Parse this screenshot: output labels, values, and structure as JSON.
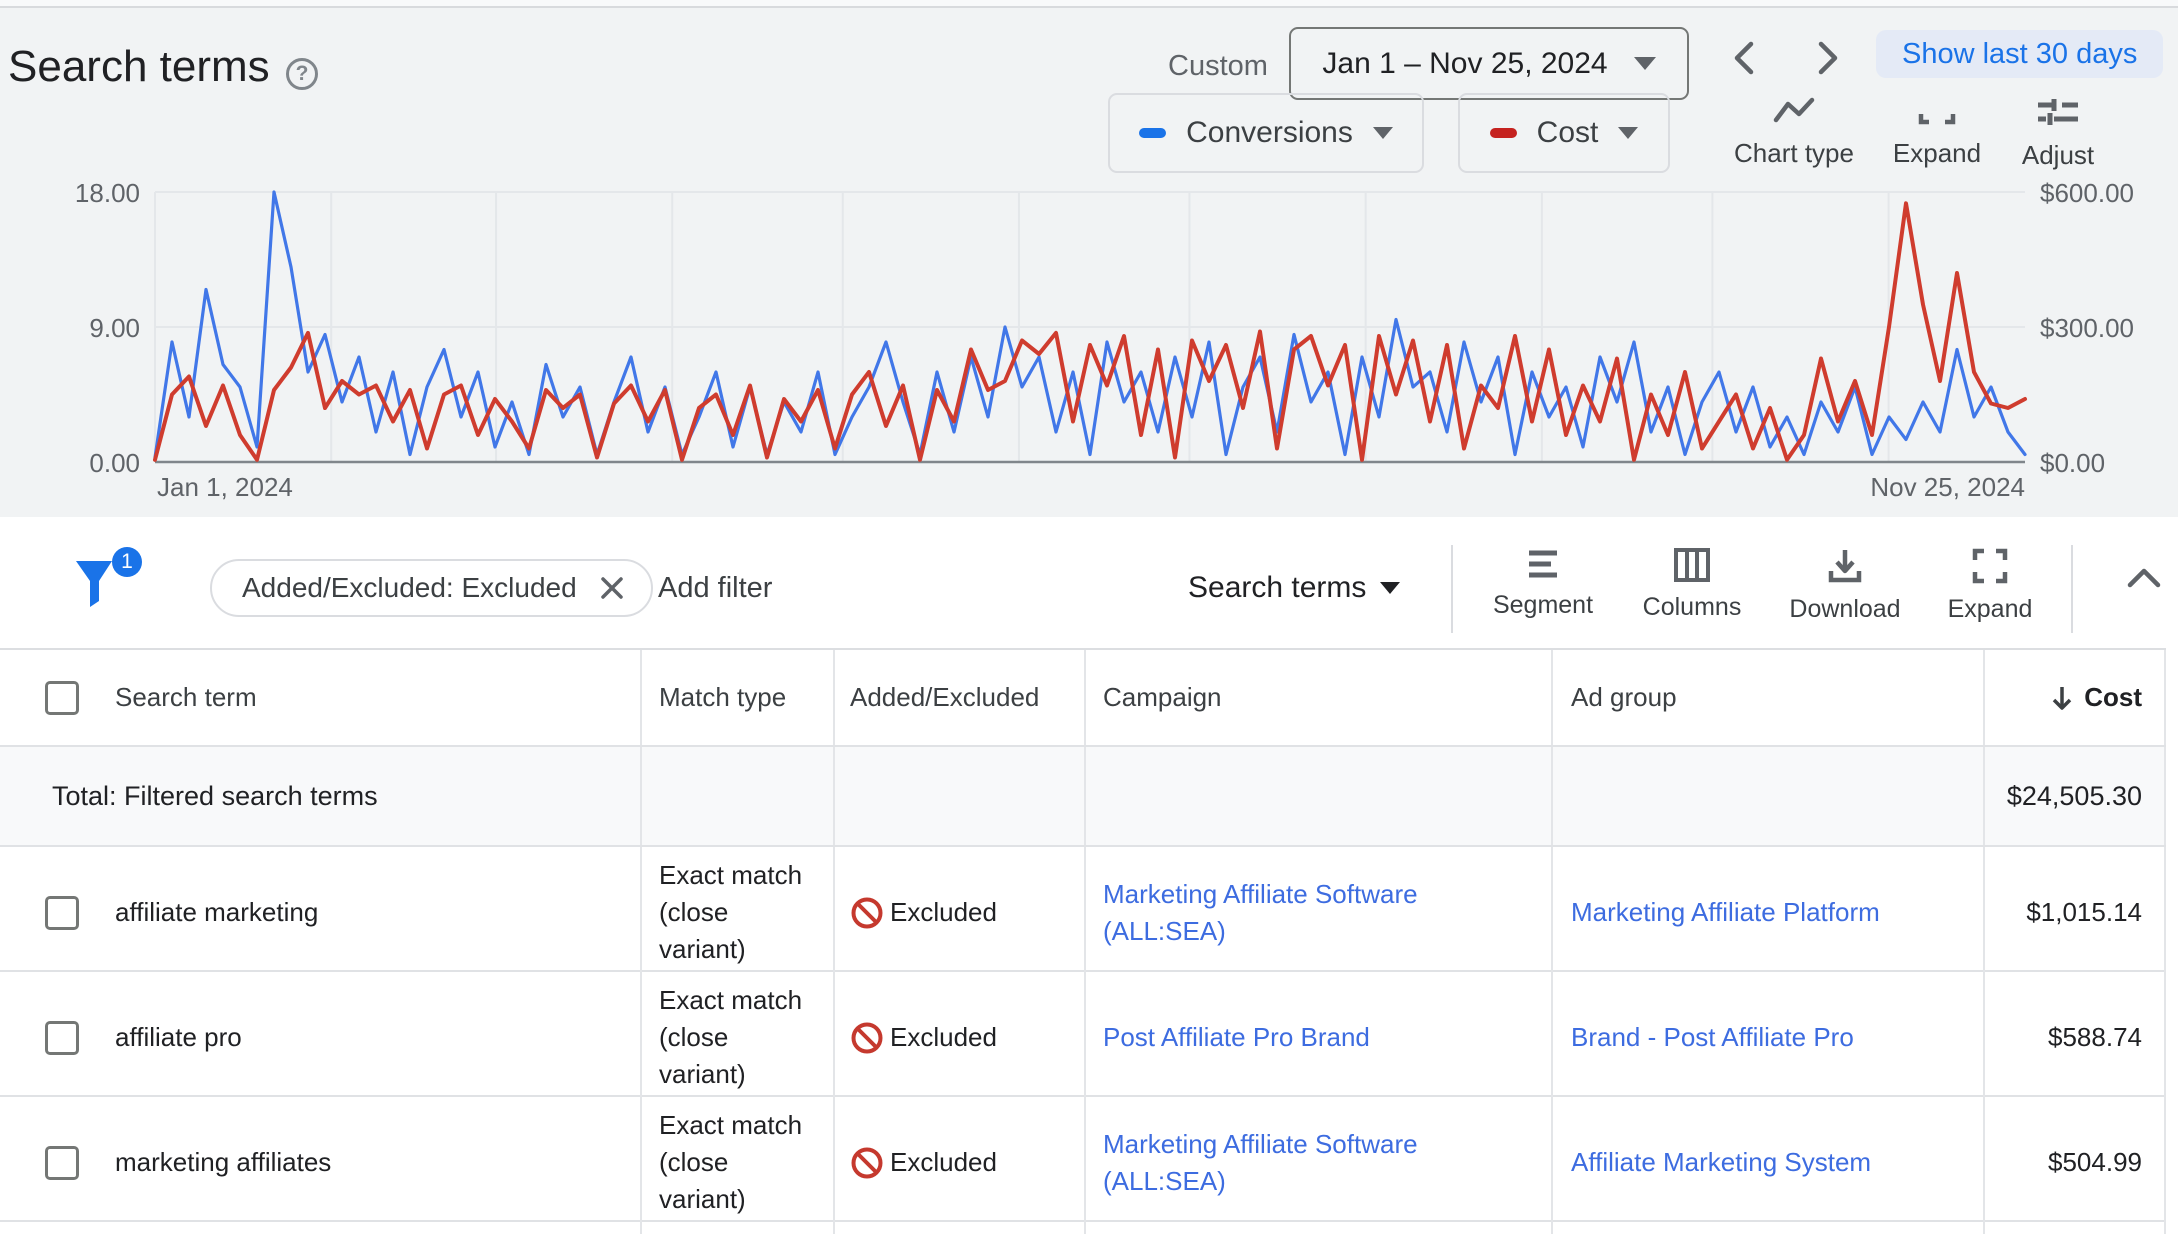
{
  "header": {
    "title": "Search terms",
    "help_icon": "?",
    "custom_label": "Custom",
    "date_range": "Jan 1 – Nov 25, 2024",
    "show_last_button": "Show last 30 days"
  },
  "chart_controls": {
    "metric1": {
      "label": "Conversions",
      "color": "#1a73e8"
    },
    "metric2": {
      "label": "Cost",
      "color": "#c5221f"
    },
    "chart_type_label": "Chart type",
    "expand_label": "Expand",
    "adjust_label": "Adjust"
  },
  "chart_data": {
    "type": "line",
    "title": "",
    "xlabel": "",
    "ylabel_left": "Conversions",
    "ylabel_right": "Cost",
    "x_start_label": "Jan 1, 2024",
    "x_end_label": "Nov 25, 2024",
    "left_axis": {
      "ticks": [
        "18.00",
        "9.00",
        "0.00"
      ],
      "max": 18
    },
    "right_axis": {
      "ticks": [
        "$600.00",
        "$300.00",
        "$0.00"
      ],
      "max": 600
    },
    "grid_month_days": [
      0,
      31,
      60,
      91,
      121,
      152,
      182,
      213,
      244,
      274,
      305
    ],
    "total_days": 329,
    "legend_position": "top-right",
    "series": [
      {
        "name": "Conversions",
        "axis": "left",
        "color": "#4177e8",
        "values": [
          0.3,
          8,
          3,
          11.5,
          6.5,
          5,
          1,
          18,
          13,
          6,
          8.5,
          4,
          7,
          2,
          6,
          0.5,
          5,
          7.5,
          3,
          6,
          1,
          4,
          0.5,
          6.5,
          3,
          5,
          0.5,
          4,
          7,
          2,
          5,
          0.5,
          3,
          6,
          1,
          5,
          0.5,
          4,
          2,
          6,
          0.5,
          3,
          5,
          8,
          4,
          0.5,
          6,
          2,
          7,
          3,
          9,
          5,
          7,
          2,
          6,
          0.5,
          8,
          4,
          6,
          2,
          7,
          3,
          8,
          0.5,
          5,
          7,
          2,
          8.5,
          4,
          6,
          0.5,
          7,
          3,
          9.5,
          5,
          6,
          2,
          8,
          4,
          7,
          0.5,
          6,
          3,
          5,
          1,
          7,
          4,
          8,
          2,
          5,
          0.5,
          4,
          6,
          2,
          5,
          1,
          3,
          0.5,
          4,
          2,
          5,
          0.5,
          3,
          1.5,
          4,
          2,
          7.5,
          3,
          5,
          2,
          0.5
        ]
      },
      {
        "name": "Cost",
        "axis": "right",
        "color": "#cf3c2e",
        "values": [
          5,
          150,
          190,
          80,
          170,
          60,
          5,
          160,
          210,
          287,
          120,
          180,
          150,
          170,
          90,
          160,
          30,
          150,
          170,
          60,
          140,
          90,
          30,
          160,
          120,
          150,
          10,
          130,
          170,
          90,
          160,
          5,
          120,
          150,
          60,
          170,
          10,
          140,
          90,
          160,
          30,
          150,
          200,
          80,
          170,
          5,
          160,
          90,
          250,
          160,
          180,
          270,
          240,
          287,
          90,
          260,
          170,
          280,
          60,
          250,
          10,
          270,
          180,
          260,
          120,
          290,
          30,
          250,
          280,
          170,
          260,
          5,
          280,
          150,
          270,
          90,
          260,
          30,
          170,
          120,
          280,
          90,
          250,
          60,
          170,
          90,
          230,
          5,
          150,
          60,
          200,
          30,
          90,
          150,
          30,
          120,
          5,
          60,
          230,
          90,
          180,
          60,
          300,
          575,
          350,
          180,
          420,
          200,
          130,
          120,
          140
        ]
      }
    ]
  },
  "filter_bar": {
    "badge_count": "1",
    "chip_label": "Added/Excluded: Excluded",
    "add_filter_label": "Add filter",
    "view_selector": "Search terms",
    "tools": {
      "segment": "Segment",
      "columns": "Columns",
      "download": "Download",
      "expand": "Expand"
    }
  },
  "table": {
    "columns": {
      "search_term": "Search term",
      "match_type": "Match type",
      "added_excluded": "Added/Excluded",
      "campaign": "Campaign",
      "ad_group": "Ad group",
      "cost": "Cost"
    },
    "total_row": {
      "label": "Total: Filtered search terms",
      "cost": "$24,505.30"
    },
    "rows": [
      {
        "search_term": "affiliate marketing",
        "match_type": "Exact match (close variant)",
        "added_excluded": "Excluded",
        "campaign": "Marketing Affiliate Software (ALL:SEA)",
        "ad_group": "Marketing Affiliate Platform",
        "cost": "$1,015.14"
      },
      {
        "search_term": "affiliate pro",
        "match_type": "Exact match (close variant)",
        "added_excluded": "Excluded",
        "campaign": "Post Affiliate Pro Brand",
        "ad_group": "Brand - Post Affiliate Pro",
        "cost": "$588.74"
      },
      {
        "search_term": "marketing affiliates",
        "match_type": "Exact match (close variant)",
        "added_excluded": "Excluded",
        "campaign": "Marketing Affiliate Software (ALL:SEA)",
        "ad_group": "Affiliate Marketing System",
        "cost": "$504.99"
      }
    ]
  },
  "colors": {
    "accent_blue": "#1a73e8",
    "link_blue": "#3d6ce0",
    "excluded_red": "#c5392e",
    "series_blue": "#4177e8",
    "series_red": "#cf3c2e",
    "header_bg": "#f1f3f4",
    "total_row_bg": "#f8f9fa"
  }
}
